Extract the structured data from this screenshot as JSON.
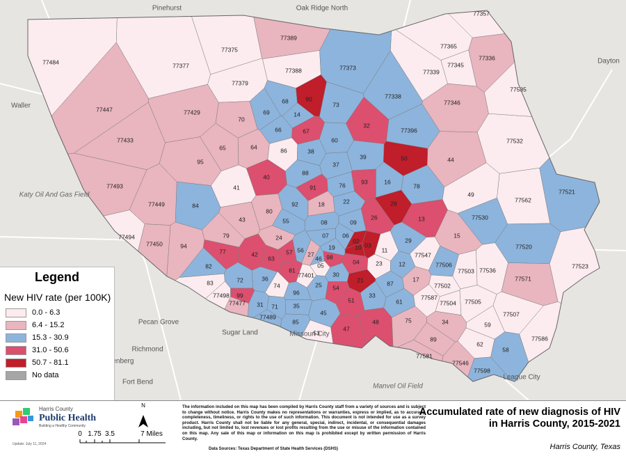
{
  "basemap": {
    "places": [
      "Pinehurst",
      "Oak Ridge North",
      "Waller",
      "Dayton",
      "Katy Oil And Gas Field",
      "Pecan Grove",
      "Sugar Land",
      "Missouri City",
      "Richmond",
      "Rosenberg",
      "Fort Bend",
      "Manvel Oil Field",
      "League City"
    ]
  },
  "zips": [
    {
      "label": "77484",
      "color": "#fcecef"
    },
    {
      "label": "77375",
      "color": "#fcecef"
    },
    {
      "label": "77389",
      "color": "#e9b5bf"
    },
    {
      "label": "77377",
      "color": "#fcecef"
    },
    {
      "label": "77388",
      "color": "#fcecef"
    },
    {
      "label": "77373",
      "color": "#8db4dc"
    },
    {
      "label": "77379",
      "color": "#fcecef"
    },
    {
      "label": "77447",
      "color": "#e9b5bf"
    },
    {
      "label": "77429",
      "color": "#e9b5bf"
    },
    {
      "label": "90",
      "color": "#bf1e2a"
    },
    {
      "label": "68",
      "color": "#8db4dc"
    },
    {
      "label": "69",
      "color": "#8db4dc"
    },
    {
      "label": "14",
      "color": "#8db4dc"
    },
    {
      "label": "73",
      "color": "#8db4dc"
    },
    {
      "label": "77338",
      "color": "#8db4dc"
    },
    {
      "label": "77339",
      "color": "#fcecef"
    },
    {
      "label": "77345",
      "color": "#fcecef"
    },
    {
      "label": "77365",
      "color": "#fcecef"
    },
    {
      "label": "77336",
      "color": "#e9b5bf"
    },
    {
      "label": "77357",
      "color": "#fcecef"
    },
    {
      "label": "77535",
      "color": "#fcecef"
    },
    {
      "label": "77346",
      "color": "#e9b5bf"
    },
    {
      "label": "70",
      "color": "#e9b5bf"
    },
    {
      "label": "66",
      "color": "#8db4dc"
    },
    {
      "label": "67",
      "color": "#dc4f6e"
    },
    {
      "label": "60",
      "color": "#8db4dc"
    },
    {
      "label": "32",
      "color": "#dc4f6e"
    },
    {
      "label": "77396",
      "color": "#8db4dc"
    },
    {
      "label": "77532",
      "color": "#fcecef"
    },
    {
      "label": "77433",
      "color": "#e9b5bf"
    },
    {
      "label": "65",
      "color": "#e9b5bf"
    },
    {
      "label": "64",
      "color": "#e9b5bf"
    },
    {
      "label": "86",
      "color": "#fcecef"
    },
    {
      "label": "38",
      "color": "#8db4dc"
    },
    {
      "label": "39",
      "color": "#8db4dc"
    },
    {
      "label": "50",
      "color": "#bf1e2a"
    },
    {
      "label": "44",
      "color": "#e9b5bf"
    },
    {
      "label": "95",
      "color": "#e9b5bf"
    },
    {
      "label": "37",
      "color": "#8db4dc"
    },
    {
      "label": "88",
      "color": "#8db4dc"
    },
    {
      "label": "40",
      "color": "#dc4f6e"
    },
    {
      "label": "93",
      "color": "#dc4f6e"
    },
    {
      "label": "16",
      "color": "#8db4dc"
    },
    {
      "label": "78",
      "color": "#8db4dc"
    },
    {
      "label": "49",
      "color": "#fcecef"
    },
    {
      "label": "77493",
      "color": "#e9b5bf"
    },
    {
      "label": "41",
      "color": "#fcecef"
    },
    {
      "label": "91",
      "color": "#dc4f6e"
    },
    {
      "label": "76",
      "color": "#8db4dc"
    },
    {
      "label": "28",
      "color": "#bf1e2a"
    },
    {
      "label": "77562",
      "color": "#fcecef"
    },
    {
      "label": "77521",
      "color": "#8db4dc"
    },
    {
      "label": "84",
      "color": "#8db4dc"
    },
    {
      "label": "77449",
      "color": "#e9b5bf"
    },
    {
      "label": "92",
      "color": "#8db4dc"
    },
    {
      "label": "18",
      "color": "#e9b5bf"
    },
    {
      "label": "22",
      "color": "#8db4dc"
    },
    {
      "label": "80",
      "color": "#e9b5bf"
    },
    {
      "label": "13",
      "color": "#dc4f6e"
    },
    {
      "label": "43",
      "color": "#e9b5bf"
    },
    {
      "label": "55",
      "color": "#8db4dc"
    },
    {
      "label": "08",
      "color": "#8db4dc"
    },
    {
      "label": "09",
      "color": "#8db4dc"
    },
    {
      "label": "26",
      "color": "#dc4f6e"
    },
    {
      "label": "77530",
      "color": "#8db4dc"
    },
    {
      "label": "15",
      "color": "#e9b5bf"
    },
    {
      "label": "77494",
      "color": "#fcecef"
    },
    {
      "label": "79",
      "color": "#e9b5bf"
    },
    {
      "label": "24",
      "color": "#e9b5bf"
    },
    {
      "label": "07",
      "color": "#8db4dc"
    },
    {
      "label": "06",
      "color": "#8db4dc"
    },
    {
      "label": "02",
      "color": "#bf1e2a"
    },
    {
      "label": "10",
      "color": "#bf1e2a"
    },
    {
      "label": "03",
      "color": "#bf1e2a"
    },
    {
      "label": "11",
      "color": "#fcecef"
    },
    {
      "label": "29",
      "color": "#8db4dc"
    },
    {
      "label": "77520",
      "color": "#8db4dc"
    },
    {
      "label": "77450",
      "color": "#e9b5bf"
    },
    {
      "label": "94",
      "color": "#e9b5bf"
    },
    {
      "label": "77",
      "color": "#dc4f6e"
    },
    {
      "label": "42",
      "color": "#dc4f6e"
    },
    {
      "label": "63",
      "color": "#dc4f6e"
    },
    {
      "label": "57",
      "color": "#dc4f6e"
    },
    {
      "label": "56",
      "color": "#8db4dc"
    },
    {
      "label": "27",
      "color": "#e9b5bf"
    },
    {
      "label": "19",
      "color": "#8db4dc"
    },
    {
      "label": "46",
      "color": "#8db4dc"
    },
    {
      "label": "98",
      "color": "#dc4f6e"
    },
    {
      "label": "04",
      "color": "#dc4f6e"
    },
    {
      "label": "23",
      "color": "#fcecef"
    },
    {
      "label": "12",
      "color": "#8db4dc"
    },
    {
      "label": "77547",
      "color": "#fcecef"
    },
    {
      "label": "77506",
      "color": "#8db4dc"
    },
    {
      "label": "77503",
      "color": "#fcecef"
    },
    {
      "label": "77536",
      "color": "#fcecef"
    },
    {
      "label": "77523",
      "color": "#fcecef"
    },
    {
      "label": "82",
      "color": "#8db4dc"
    },
    {
      "label": "81",
      "color": "#dc4f6e"
    },
    {
      "label": "05",
      "color": "#fcecef"
    },
    {
      "label": "77401",
      "color": "#fcecef"
    },
    {
      "label": "30",
      "color": "#8db4dc"
    },
    {
      "label": "21",
      "color": "#bf1e2a"
    },
    {
      "label": "83",
      "color": "#fcecef"
    },
    {
      "label": "72",
      "color": "#8db4dc"
    },
    {
      "label": "36",
      "color": "#8db4dc"
    },
    {
      "label": "74",
      "color": "#fcecef"
    },
    {
      "label": "25",
      "color": "#8db4dc"
    },
    {
      "label": "54",
      "color": "#dc4f6e"
    },
    {
      "label": "87",
      "color": "#8db4dc"
    },
    {
      "label": "17",
      "color": "#e9b5bf"
    },
    {
      "label": "77502",
      "color": "#fcecef"
    },
    {
      "label": "77571",
      "color": "#e9b5bf"
    },
    {
      "label": "77498",
      "color": "#fcecef"
    },
    {
      "label": "99",
      "color": "#dc4f6e"
    },
    {
      "label": "77477",
      "color": "#e9b5bf"
    },
    {
      "label": "96",
      "color": "#8db4dc"
    },
    {
      "label": "33",
      "color": "#8db4dc"
    },
    {
      "label": "61",
      "color": "#8db4dc"
    },
    {
      "label": "77587",
      "color": "#fcecef"
    },
    {
      "label": "77504",
      "color": "#fcecef"
    },
    {
      "label": "77505",
      "color": "#fcecef"
    },
    {
      "label": "31",
      "color": "#8db4dc"
    },
    {
      "label": "71",
      "color": "#8db4dc"
    },
    {
      "label": "35",
      "color": "#8db4dc"
    },
    {
      "label": "51",
      "color": "#dc4f6e"
    },
    {
      "label": "77507",
      "color": "#fcecef"
    },
    {
      "label": "77489",
      "color": "#8db4dc"
    },
    {
      "label": "85",
      "color": "#8db4dc"
    },
    {
      "label": "45",
      "color": "#8db4dc"
    },
    {
      "label": "75",
      "color": "#e9b5bf"
    },
    {
      "label": "34",
      "color": "#e9b5bf"
    },
    {
      "label": "59",
      "color": "#fcecef"
    },
    {
      "label": "53",
      "color": "#fcecef"
    },
    {
      "label": "47",
      "color": "#dc4f6e"
    },
    {
      "label": "48",
      "color": "#dc4f6e"
    },
    {
      "label": "89",
      "color": "#e9b5bf"
    },
    {
      "label": "77586",
      "color": "#fcecef"
    },
    {
      "label": "77581",
      "color": "#e9b5bf"
    },
    {
      "label": "62",
      "color": "#fcecef"
    },
    {
      "label": "58",
      "color": "#8db4dc"
    },
    {
      "label": "77546",
      "color": "#e9b5bf"
    },
    {
      "label": "77598",
      "color": "#8db4dc"
    }
  ],
  "legend": {
    "title": "Legend",
    "heading": "New HIV rate (per 100K)",
    "classes": [
      {
        "label": "0.0 - 6.3",
        "color": "#fcecef"
      },
      {
        "label": "6.4 - 15.2",
        "color": "#e9b5bf"
      },
      {
        "label": "15.3 - 30.9",
        "color": "#8db4dc"
      },
      {
        "label": "31.0 - 50.6",
        "color": "#dc4f6e"
      },
      {
        "label": "50.7 - 81.1",
        "color": "#bf1e2a"
      },
      {
        "label": "No data",
        "color": "#a6a6a6"
      }
    ]
  },
  "footer": {
    "logo": {
      "org": "Harris County",
      "name": "Public Health",
      "tagline": "Building a Healthy Community"
    },
    "update": "Update: July 11, 2024",
    "north": "N",
    "scale": [
      "0",
      "1.75",
      "3.5",
      "7 Miles"
    ],
    "disclaimer": "The information included on this map has been compiled by Harris County staff from a variety of sources and is subject to change without notice. Harris County makes no representations or warranties, express or implied, as to accuracy, completeness, timeliness, or rights to the use of such information. This document is not intended for use as a survey product. Harris County shall not be liable for any general, special, indirect, incidental, or consequential damages including, but not limited to, lost revenues or lost profits resulting from the use or misuse of the information contained on this map. Any sale of this map or information on this map is prohibited except by written permission of Harris County.",
    "sources": "Data Sources: Texas Department of State Health Services (DSHS)",
    "title": "Accumulated rate of new diagnosis of HIV in Harris County, 2015-2021",
    "subtitle": "Harris County, Texas"
  }
}
